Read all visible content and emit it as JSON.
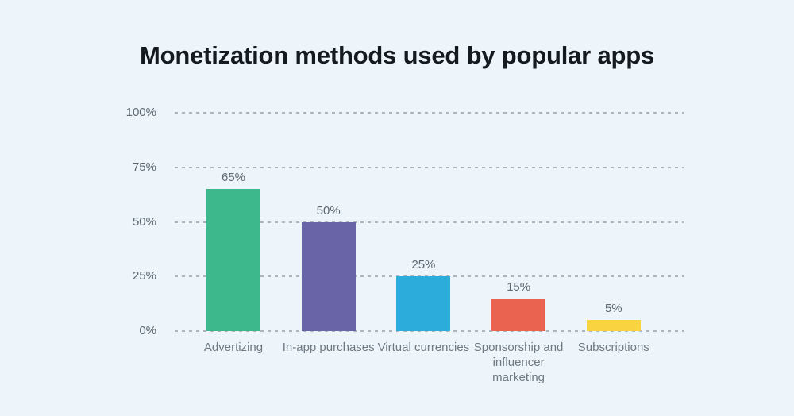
{
  "title": "Monetization methods used by popular apps",
  "chart_data": {
    "type": "bar",
    "title": "Monetization methods used by popular apps",
    "categories": [
      "Advertizing",
      "In-app purchases",
      "Virtual currencies",
      "Sponsorship and influencer marketing",
      "Subscriptions"
    ],
    "values": [
      65,
      50,
      25,
      15,
      5
    ],
    "value_labels": [
      "65%",
      "50%",
      "25%",
      "15%",
      "5%"
    ],
    "bar_colors": [
      "#3db88c",
      "#6963a8",
      "#2cacda",
      "#e96350",
      "#fad440"
    ],
    "y_ticks": [
      "100%",
      "75%",
      "50%",
      "25%",
      "0%"
    ],
    "y_tick_values": [
      100,
      75,
      50,
      25,
      0
    ],
    "ylim": [
      0,
      100
    ],
    "xlabel": "",
    "ylabel": "",
    "grid": "horizontal-dashed",
    "legend": "none"
  },
  "colors": {
    "background": "#edf5fa",
    "title_text": "#151a20",
    "grid_line": "#adb4ba",
    "tick_text": "#5d6872",
    "value_label_text": "#5d6872",
    "category_label_text": "#6e7983"
  }
}
